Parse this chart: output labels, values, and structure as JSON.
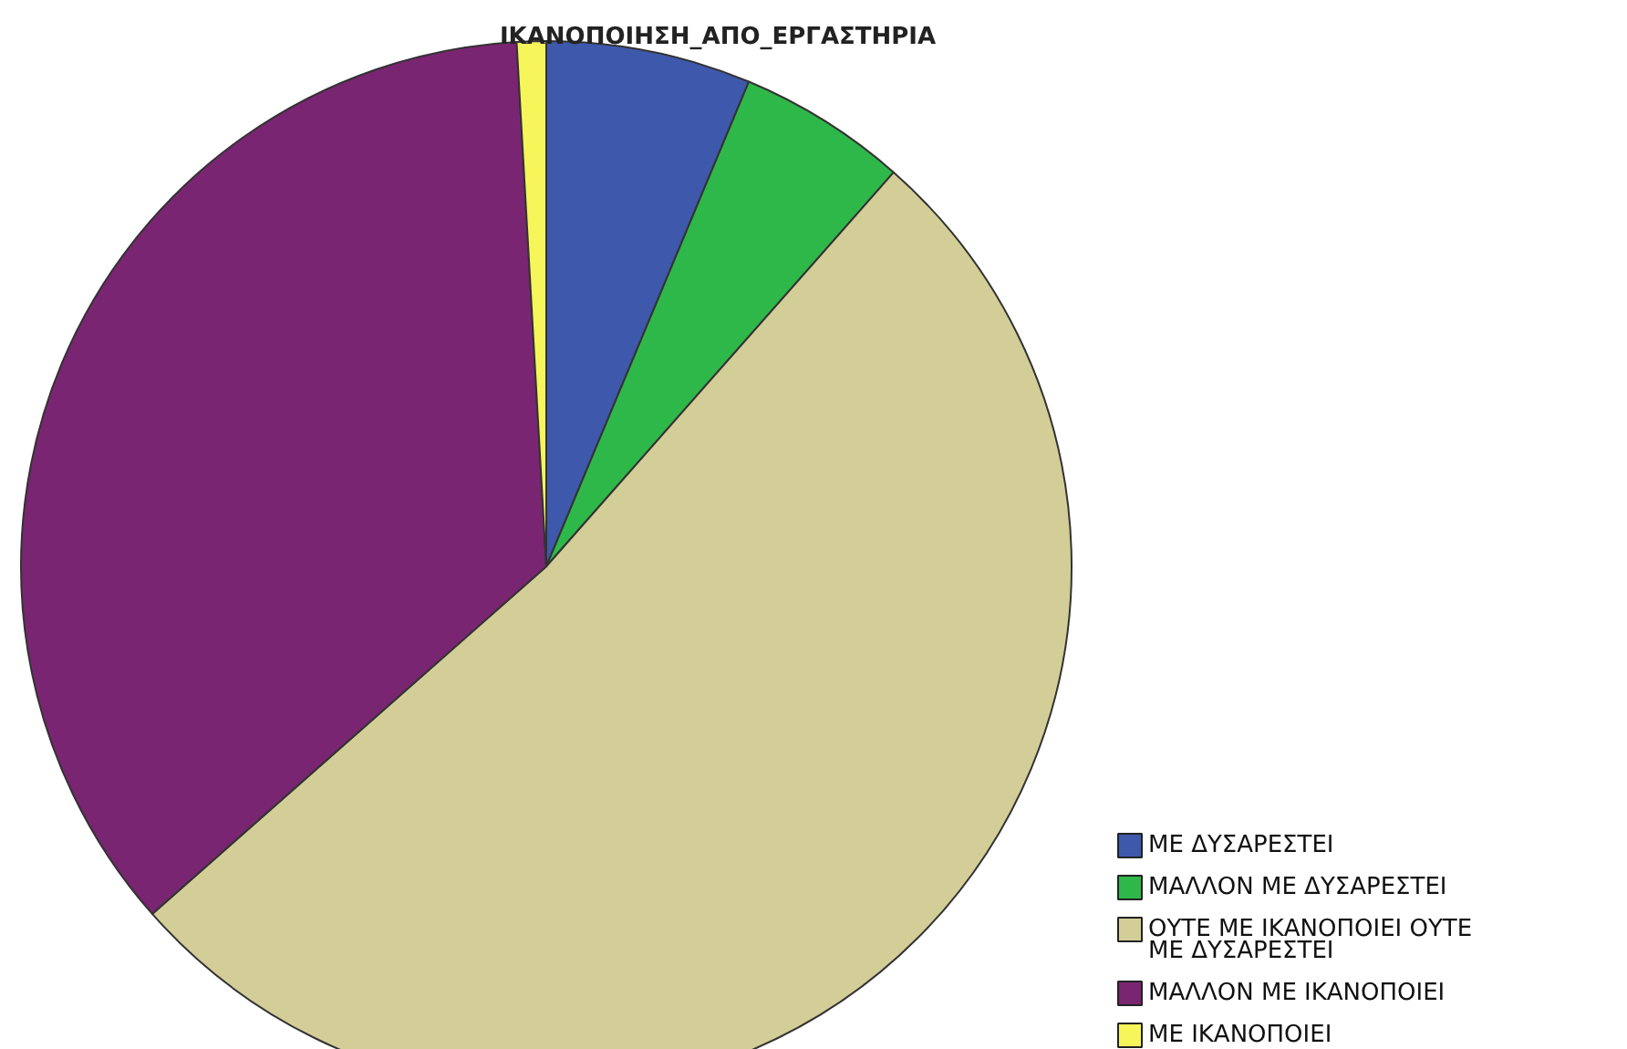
{
  "chart_data": {
    "type": "pie",
    "title": "ΙΚΑΝΟΠΟΙΗΣΗ_ΑΠΟ_ΕΡΓΑΣΤΗΡΙΑ",
    "categories": [
      "ΜΕ ΔΥΣΑΡΕΣΤΕΙ",
      "ΜΑΛΛΟΝ ΜΕ ΔΥΣΑΡΕΣΤΕΙ",
      "ΟΥΤΕ ΜΕ ΙΚΑΝΟΠΟΙΕΙ ΟΥΤΕ ΜΕ ΔΥΣΑΡΕΣΤΕΙ",
      "ΜΑΛΛΟΝ ΜΕ ΙΚΑΝΟΠΟΙΕΙ",
      "ΜΕ ΙΚΑΝΟΠΟΙΕΙ"
    ],
    "values": [
      6.3,
      5.2,
      52.0,
      35.6,
      0.9
    ],
    "colors": [
      "#3e58ac",
      "#2fb84a",
      "#d3ce97",
      "#7a2572",
      "#f6f55a"
    ],
    "legend": "bottom right"
  }
}
